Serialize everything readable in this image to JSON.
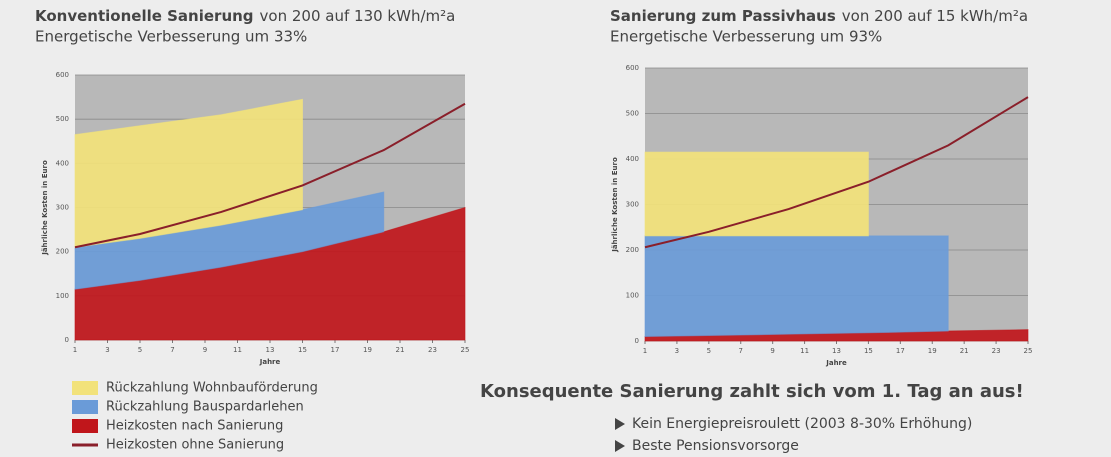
{
  "chart_data": [
    {
      "type": "area",
      "title_strong": "Konventionelle Sanierung",
      "title": "von 200 auf 130 kWh/m²a",
      "subtitle": "Energetische Verbesserung um 33%",
      "ylabel": "Jährliche Kosten in Euro",
      "xlabel": "Jahre",
      "x": [
        1,
        5,
        10,
        15,
        20,
        25
      ],
      "series": [
        {
          "name": "Heizkosten nach Sanierung",
          "color": "#c0161b",
          "values": [
            115,
            135,
            165,
            200,
            245,
            300
          ]
        },
        {
          "name": "Rückzahlung Bauspardarlehen",
          "color": "#6a9bd8",
          "values": [
            95,
            95,
            95,
            95,
            90,
            null
          ]
        },
        {
          "name": "Rückzahlung Wohnbauförderung",
          "color": "#f2e27a",
          "values": [
            255,
            255,
            250,
            250,
            null,
            null
          ]
        },
        {
          "name": "Heizkosten ohne Sanierung",
          "color": "#8a1f2a",
          "line": true,
          "values": [
            210,
            240,
            290,
            350,
            430,
            535
          ]
        }
      ],
      "xlim": [
        1,
        25
      ],
      "xticks": [
        1,
        3,
        5,
        7,
        9,
        11,
        13,
        15,
        17,
        19,
        21,
        23,
        25
      ],
      "ylim": [
        0,
        600
      ],
      "yticks": [
        0,
        100,
        200,
        300,
        400,
        500,
        600
      ],
      "grid": true
    },
    {
      "type": "area",
      "title_strong": "Sanierung zum Passivhaus",
      "title": "von 200 auf 15 kWh/m²a",
      "subtitle": "Energetische Verbesserung um 93%",
      "ylabel": "Jährliche Kosten in Euro",
      "xlabel": "Jahre",
      "x": [
        1,
        5,
        10,
        15,
        20,
        25
      ],
      "series": [
        {
          "color": "#c0161b",
          "values": [
            10,
            12,
            15,
            18,
            22,
            25
          ]
        },
        {
          "color": "#6a9bd8",
          "values": [
            221,
            219,
            216,
            213,
            209,
            null
          ]
        },
        {
          "color": "#f2e27a",
          "values": [
            184,
            184,
            184,
            184,
            null,
            null
          ]
        },
        {
          "color": "#8a1f2a",
          "line": true,
          "values": [
            206,
            240,
            290,
            350,
            430,
            536
          ]
        }
      ],
      "xlim": [
        1,
        25
      ],
      "xticks": [
        1,
        3,
        5,
        7,
        9,
        11,
        13,
        15,
        17,
        19,
        21,
        23,
        25
      ],
      "ylim": [
        0,
        600
      ],
      "yticks": [
        0,
        100,
        200,
        300,
        400,
        500,
        600
      ],
      "grid": true
    }
  ],
  "headline": "Konsequente Sanierung zahlt sich vom 1. Tag an aus!",
  "bullets": [
    "Kein Energiepreisroulett (2003 8-30% Erhöhung)",
    "Beste Pensionsvorsorge"
  ]
}
